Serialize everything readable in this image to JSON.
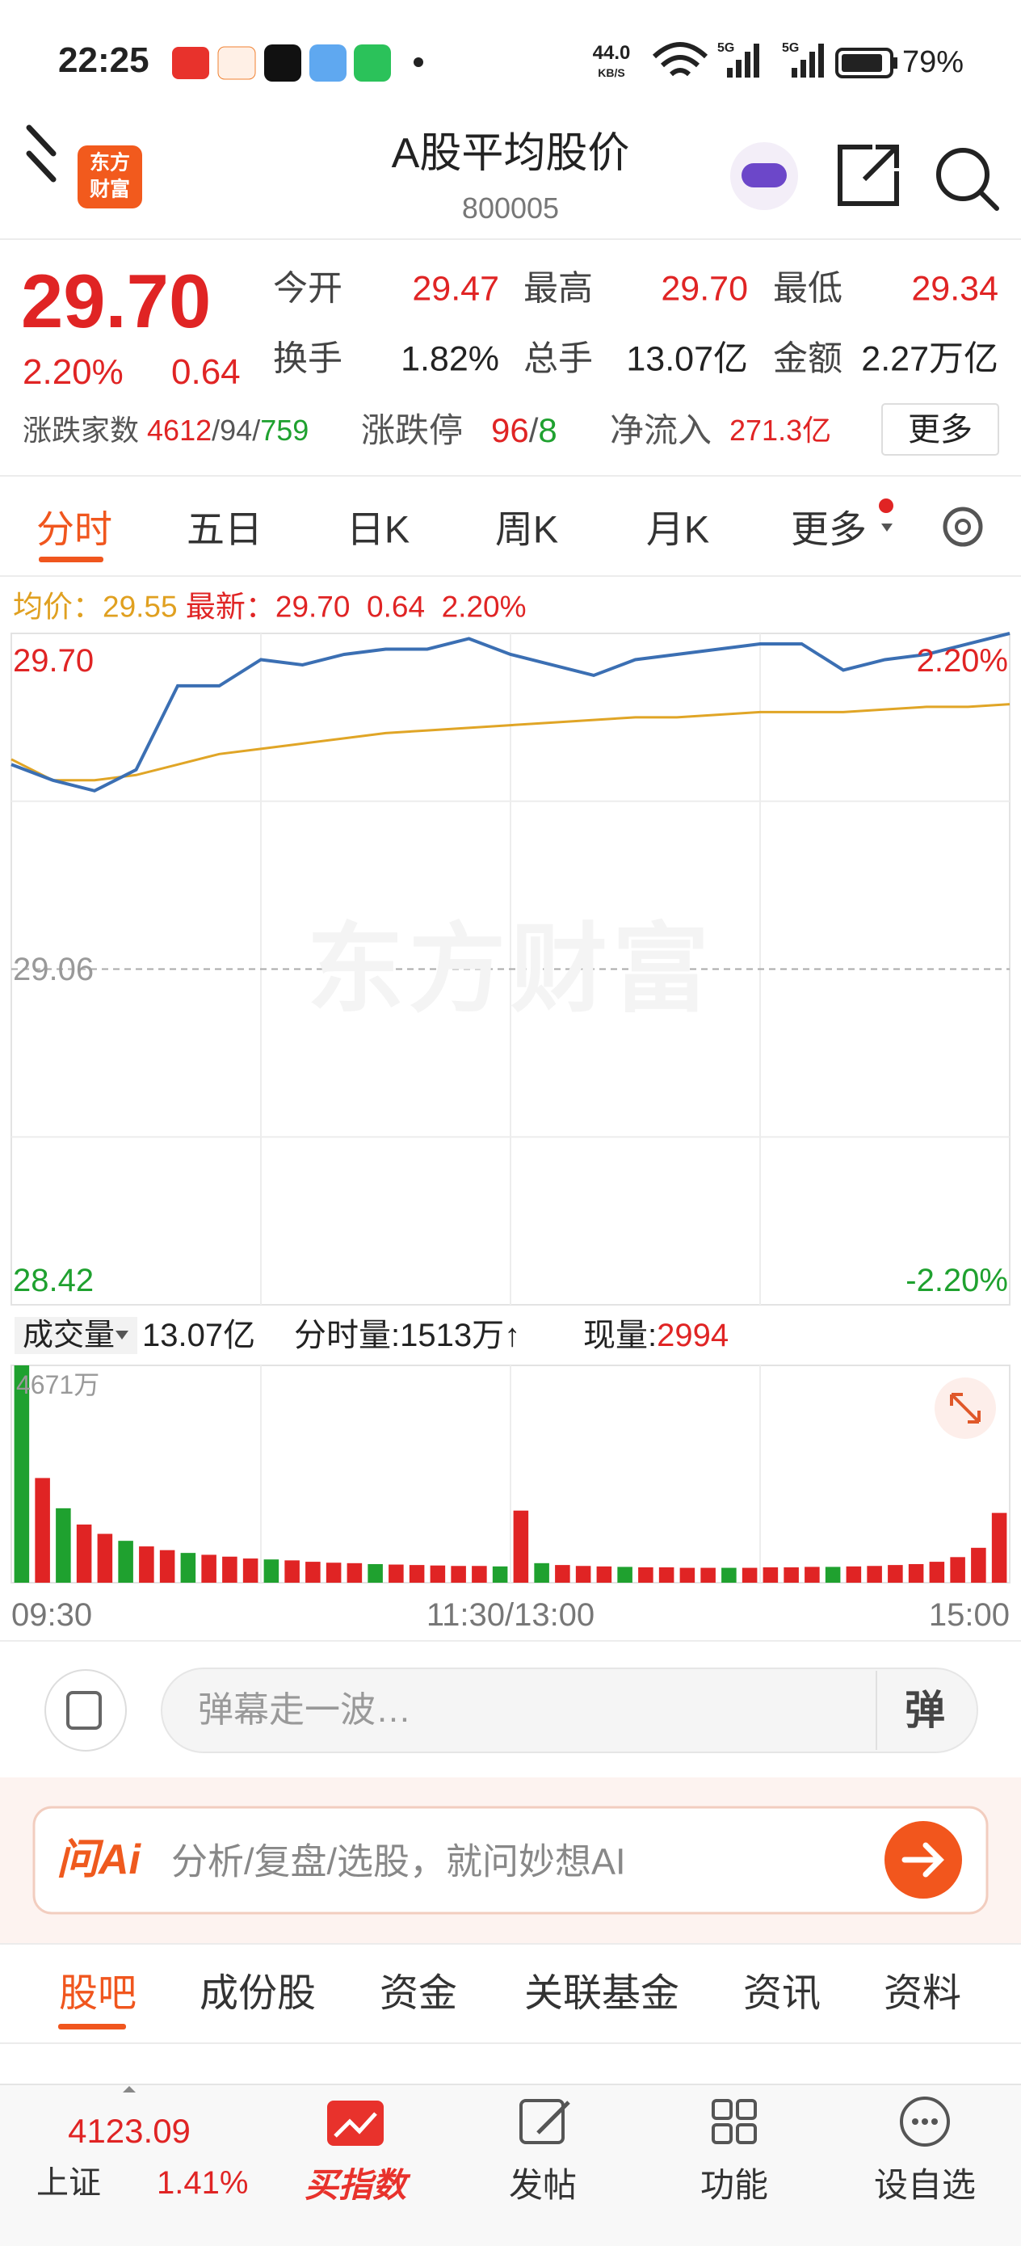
{
  "status_bar": {
    "time": "22:25",
    "net_speed": "44.0",
    "net_unit": "KB/S",
    "signal_1": "5G",
    "signal_2": "5G",
    "battery": "79%"
  },
  "header": {
    "logo_line1": "东方",
    "logo_line2": "财富",
    "title": "A股平均股价",
    "code": "800005"
  },
  "quote": {
    "price": "29.70",
    "change_pct": "2.20%",
    "change": "0.64",
    "fields": [
      {
        "label": "今开",
        "value": "29.47"
      },
      {
        "label": "最高",
        "value": "29.70"
      },
      {
        "label": "最低",
        "value": "29.34"
      },
      {
        "label": "换手",
        "value": "1.82%"
      },
      {
        "label": "总手",
        "value": "13.07亿"
      },
      {
        "label": "金额",
        "value": "2.27万亿"
      }
    ],
    "breadth_label": "涨跌家数",
    "breadth_up": "4612",
    "breadth_flat": "94",
    "breadth_down": "759",
    "separator": "/",
    "limit_label": "涨跌停",
    "limit_up": "96",
    "limit_down": "8",
    "inflow_label": "净流入",
    "inflow_value": "271.3亿",
    "more_button": "更多"
  },
  "tabs": {
    "items": [
      "分时",
      "五日",
      "日K",
      "周K",
      "月K",
      "更多"
    ],
    "active": 0
  },
  "chart_legend": {
    "avg_label": "均价：",
    "avg_value": "29.55",
    "latest_label": "最新：",
    "latest_value": "29.70",
    "latest_change": "0.64",
    "latest_pct": "2.20%"
  },
  "watermark": "东方财富",
  "volume_header": {
    "label": "成交量",
    "total": "13.07亿",
    "minute_volume": "分时量:1513万↑",
    "current_label": "现量:",
    "current_value": "2994"
  },
  "chart_data": [
    {
      "type": "line",
      "x": [
        0,
        10,
        20,
        30,
        40,
        50,
        60,
        70,
        80,
        90,
        100,
        110,
        120,
        130,
        140,
        150,
        160,
        170,
        180,
        190,
        200,
        210,
        220,
        230,
        240
      ],
      "xlim": [
        0,
        240
      ],
      "ylim": [
        28.42,
        29.7
      ],
      "yticks": [
        28.42,
        29.06,
        {
          "value": 29.7,
          "label": "29.70"
        }
      ],
      "y2lim": [
        -2.2,
        2.2
      ],
      "y2ticks": [
        {
          "value": -2.2,
          "label": "-2.20%"
        },
        {
          "value": 2.2,
          "label": "2.20%"
        }
      ],
      "series": [
        {
          "color": "#3b6fb3",
          "values": [
            29.45,
            29.42,
            29.4,
            29.44,
            29.6,
            29.6,
            29.65,
            29.64,
            29.66,
            29.67,
            29.67,
            29.69,
            29.66,
            29.64,
            29.62,
            29.65,
            29.66,
            29.67,
            29.68,
            29.68,
            29.63,
            29.65,
            29.66,
            29.68,
            29.7
          ]
        },
        {
          "color": "#e0a526",
          "values": [
            29.46,
            29.42,
            29.42,
            29.43,
            29.45,
            29.47,
            29.48,
            29.49,
            29.5,
            29.51,
            29.515,
            29.52,
            29.525,
            29.53,
            29.535,
            29.54,
            29.54,
            29.545,
            29.55,
            29.55,
            29.55,
            29.555,
            29.56,
            29.56,
            29.565
          ]
        }
      ]
    },
    {
      "type": "bar",
      "x": [
        2.5,
        7.5,
        12.5,
        17.5,
        22.5,
        27.5,
        32.5,
        37.5,
        42.5,
        47.5,
        52.5,
        57.5,
        62.5,
        67.5,
        72.5,
        77.5,
        82.5,
        87.5,
        92.5,
        97.5,
        102.5,
        107.5,
        112.5,
        117.5,
        122.5,
        127.5,
        132.5,
        137.5,
        142.5,
        147.5,
        152.5,
        157.5,
        162.5,
        167.5,
        172.5,
        177.5,
        182.5,
        187.5,
        192.5,
        197.5,
        202.5,
        207.5,
        212.5,
        217.5,
        222.5,
        227.5,
        232.5,
        237.5
      ],
      "values": [
        4671,
        2250,
        1600,
        1250,
        1050,
        900,
        780,
        700,
        640,
        600,
        560,
        520,
        500,
        480,
        450,
        430,
        420,
        400,
        390,
        380,
        370,
        360,
        360,
        350,
        1550,
        420,
        380,
        360,
        350,
        340,
        330,
        330,
        320,
        320,
        320,
        320,
        330,
        330,
        340,
        340,
        350,
        360,
        380,
        400,
        450,
        550,
        750,
        1500
      ],
      "colors": [
        "#1fa12f",
        "#e02424",
        "#1fa12f",
        "#e02424",
        "#e02424",
        "#1fa12f",
        "#e02424",
        "#e02424",
        "#1fa12f",
        "#e02424",
        "#e02424",
        "#e02424",
        "#1fa12f",
        "#e02424",
        "#e02424",
        "#e02424",
        "#e02424",
        "#1fa12f",
        "#e02424",
        "#e02424",
        "#e02424",
        "#e02424",
        "#e02424",
        "#1fa12f",
        "#e02424",
        "#1fa12f",
        "#e02424",
        "#e02424",
        "#e02424",
        "#1fa12f",
        "#e02424",
        "#e02424",
        "#e02424",
        "#e02424",
        "#1fa12f",
        "#e02424",
        "#e02424",
        "#e02424",
        "#e02424",
        "#1fa12f",
        "#e02424",
        "#e02424",
        "#e02424",
        "#e02424",
        "#e02424",
        "#e02424",
        "#e02424",
        "#e02424"
      ],
      "xlim": [
        0,
        240
      ],
      "ylim": [
        0,
        4671
      ],
      "yticks": [
        {
          "value": 4671,
          "label": "4671万"
        }
      ],
      "xticks": [
        {
          "value": 0,
          "label": "09:30"
        },
        {
          "value": 120,
          "label": "11:30/13:00"
        },
        {
          "value": 240,
          "label": "15:00"
        }
      ]
    }
  ],
  "danmaku": {
    "placeholder": "弹幕走一波…",
    "button": "弹"
  },
  "ai_bar": {
    "logo": "问Ai",
    "placeholder": "分析/复盘/选股，就问妙想AI"
  },
  "section_tabs": {
    "items": [
      "股吧",
      "成份股",
      "资金",
      "关联基金",
      "资讯",
      "资料"
    ],
    "active": 0
  },
  "bottom_nav": {
    "index_value": "4123.09",
    "index_name": "上证",
    "index_pct": "1.41%",
    "items": [
      "买指数",
      "发帖",
      "功能",
      "设自选"
    ],
    "active": 0
  }
}
